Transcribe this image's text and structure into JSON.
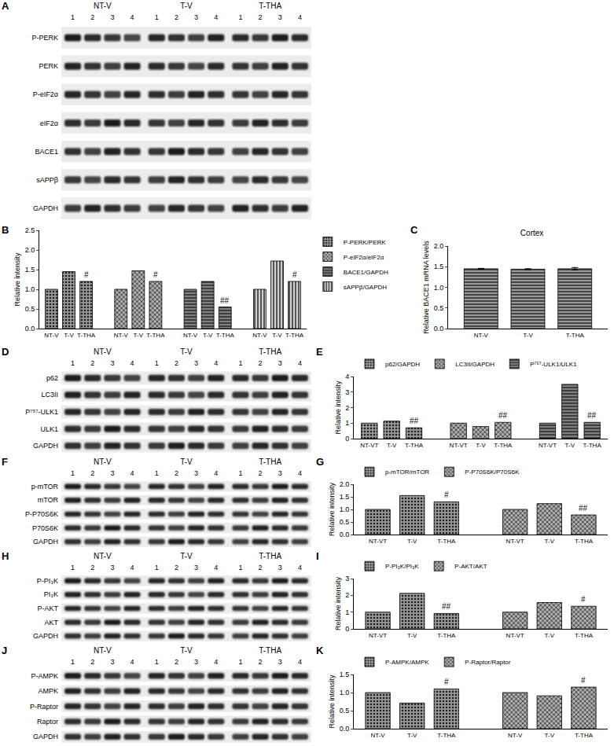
{
  "blots": [
    {
      "panel": "A",
      "groups": [
        "NT-V",
        "T-V",
        "T-THA"
      ],
      "lanes": [
        "1",
        "2",
        "3",
        "4"
      ],
      "rows": [
        "P-PERK",
        "PERK",
        "P-eIF2α",
        "eIF2α",
        "BACE1",
        "sAPPβ",
        "GAPDH"
      ]
    },
    {
      "panel": "D",
      "groups": [
        "NT-V",
        "T-V",
        "T-THA"
      ],
      "lanes": [
        "1",
        "2",
        "3",
        "4"
      ],
      "rows": [
        "p62",
        "LC3II",
        "P⁷⁵⁷-ULK1",
        "ULK1",
        "GAPDH"
      ]
    },
    {
      "panel": "F",
      "groups": [
        "NT-V",
        "T-V",
        "T-THA"
      ],
      "lanes": [
        "1",
        "2",
        "3",
        "4"
      ],
      "rows": [
        "p-mTOR",
        "mTOR",
        "P-P70S6K",
        "P70S6K",
        "GAPDH"
      ]
    },
    {
      "panel": "H",
      "groups": [
        "NT-V",
        "T-V",
        "T-THA"
      ],
      "lanes": [
        "1",
        "2",
        "3",
        "4"
      ],
      "rows": [
        "P-PI₃K",
        "PI₃K",
        "P-AKT",
        "AKT",
        "GAPDH"
      ]
    },
    {
      "panel": "J",
      "groups": [
        "NT-V",
        "T-V",
        "T-THA"
      ],
      "lanes": [
        "1",
        "2",
        "3",
        "4"
      ],
      "rows": [
        "P-AMPK",
        "AMPK",
        "P-Raptor",
        "Raptor",
        "GAPDH"
      ]
    }
  ],
  "chart_data": [
    {
      "panel": "B",
      "type": "bar",
      "categories": [
        "NT-V",
        "T-V",
        "T-THA"
      ],
      "y_label": "Relative intensity",
      "ylim": [
        0,
        2.5
      ],
      "yticks": [
        {
          "value": 0,
          "label": "0.0"
        },
        {
          "value": 0.5,
          "label": "0.5"
        },
        {
          "value": 1,
          "label": "1.0"
        },
        {
          "value": 1.5,
          "label": "1.5"
        },
        {
          "value": 2,
          "label": "2.0"
        },
        {
          "value": 2.5,
          "label": "2.5"
        }
      ],
      "legend": "right",
      "series": [
        {
          "name": "P-PERK/PERK",
          "color": "#9a9a9a",
          "marker": "dots",
          "values": [
            1,
            1.45,
            1.2
          ],
          "annotations": [
            null,
            null,
            "#"
          ]
        },
        {
          "name": "P-eIF2α/eIF2α",
          "color": "#b0b0b0",
          "marker": "checks",
          "values": [
            1,
            1.47,
            1.2
          ],
          "annotations": [
            null,
            null,
            "#"
          ]
        },
        {
          "name": "BACE1/GAPDH",
          "color": "#808080",
          "marker": "hlines",
          "values": [
            1,
            1.2,
            0.55
          ],
          "annotations": [
            null,
            null,
            "##"
          ]
        },
        {
          "name": "sAPPβ/GAPDH",
          "color": "#d0d0d0",
          "marker": "vlines",
          "values": [
            1,
            1.72,
            1.2
          ],
          "annotations": [
            null,
            null,
            "#"
          ]
        }
      ]
    },
    {
      "panel": "C",
      "type": "bar",
      "title": "Cortex",
      "categories": [
        "NT-V",
        "T-V",
        "T-THA"
      ],
      "values": [
        1.45,
        1.44,
        1.45
      ],
      "errors": [
        0.01,
        0.01,
        0.03
      ],
      "color": "#9a9a9a",
      "marker": "hlines",
      "y_label": "Relative BACE1 mRNA levels",
      "ylim": [
        0,
        2.0
      ],
      "yticks": [
        {
          "value": 0,
          "label": "0.0"
        },
        {
          "value": 0.5,
          "label": "0.5"
        },
        {
          "value": 1,
          "label": "1.0"
        },
        {
          "value": 1.5,
          "label": "1.5"
        },
        {
          "value": 2,
          "label": "2.0"
        }
      ]
    },
    {
      "panel": "E",
      "type": "bar",
      "categories": [
        "NT-VT",
        "T-V",
        "T-THA"
      ],
      "y_label": "Relative intensity",
      "ylim": [
        0,
        4
      ],
      "yticks": [
        0,
        1,
        2,
        3,
        4
      ],
      "legend": "top",
      "series": [
        {
          "name": "p62/GAPDH",
          "color": "#9a9a9a",
          "marker": "dots",
          "values": [
            1,
            1.13,
            0.7
          ],
          "annotations": [
            null,
            null,
            "##"
          ]
        },
        {
          "name": "LC3II/GAPDH",
          "color": "#b0b0b0",
          "marker": "checks",
          "values": [
            1,
            0.78,
            1.05
          ],
          "annotations": [
            null,
            null,
            "##"
          ]
        },
        {
          "name": "P⁷⁵⁷-ULK1/ULK1",
          "color": "#808080",
          "marker": "hlines",
          "values": [
            1,
            3.5,
            1.05
          ],
          "annotations": [
            null,
            null,
            "##"
          ]
        }
      ]
    },
    {
      "panel": "G",
      "type": "bar",
      "categories": [
        "NT-VT",
        "T-V",
        "T-THA"
      ],
      "y_label": "Relative intensity",
      "ylim": [
        0,
        2.0
      ],
      "yticks": [
        {
          "value": 0,
          "label": "0.0"
        },
        {
          "value": 0.5,
          "label": "0.5"
        },
        {
          "value": 1,
          "label": "1.0"
        },
        {
          "value": 1.5,
          "label": "1.5"
        },
        {
          "value": 2,
          "label": "2.0"
        }
      ],
      "legend": "top",
      "series": [
        {
          "name": "p-mTOR/mTOR",
          "color": "#9a9a9a",
          "marker": "dots",
          "values": [
            1,
            1.55,
            1.3
          ],
          "annotations": [
            null,
            null,
            "#"
          ]
        },
        {
          "name": "P-P70S6K/P70S6K",
          "color": "#b0b0b0",
          "marker": "checks",
          "values": [
            1,
            1.23,
            0.78
          ],
          "annotations": [
            null,
            null,
            "##"
          ]
        }
      ]
    },
    {
      "panel": "I",
      "type": "bar",
      "categories": [
        "NT-VT",
        "T-V",
        "T-THA"
      ],
      "y_label": "Relative intensity",
      "ylim": [
        0,
        3
      ],
      "yticks": [
        0,
        1,
        2,
        3
      ],
      "legend": "top",
      "series": [
        {
          "name": "P-PI₃K/PI₃K",
          "color": "#9a9a9a",
          "marker": "dots",
          "values": [
            1,
            2.12,
            0.92
          ],
          "annotations": [
            null,
            null,
            "##"
          ]
        },
        {
          "name": "P-AKT/AKT",
          "color": "#b0b0b0",
          "marker": "checks",
          "values": [
            1,
            1.57,
            1.35
          ],
          "annotations": [
            null,
            null,
            "#"
          ]
        }
      ]
    },
    {
      "panel": "K",
      "type": "bar",
      "categories": [
        "NT-V",
        "T-V",
        "T-THA"
      ],
      "y_label": "Relative intensity",
      "ylim": [
        0,
        1.5
      ],
      "yticks": [
        {
          "value": 0,
          "label": "0.0"
        },
        {
          "value": 0.5,
          "label": "0.5"
        },
        {
          "value": 1,
          "label": "1.0"
        },
        {
          "value": 1.5,
          "label": "1.5"
        }
      ],
      "legend": "top",
      "series": [
        {
          "name": "P-AMPK/AMPK",
          "color": "#9a9a9a",
          "marker": "dots",
          "values": [
            1,
            0.71,
            1.1
          ],
          "annotations": [
            null,
            null,
            "#"
          ]
        },
        {
          "name": "P-Raptor/Raptor",
          "color": "#b0b0b0",
          "marker": "checks",
          "values": [
            1,
            0.91,
            1.15
          ],
          "annotations": [
            null,
            null,
            "#"
          ]
        }
      ]
    }
  ]
}
